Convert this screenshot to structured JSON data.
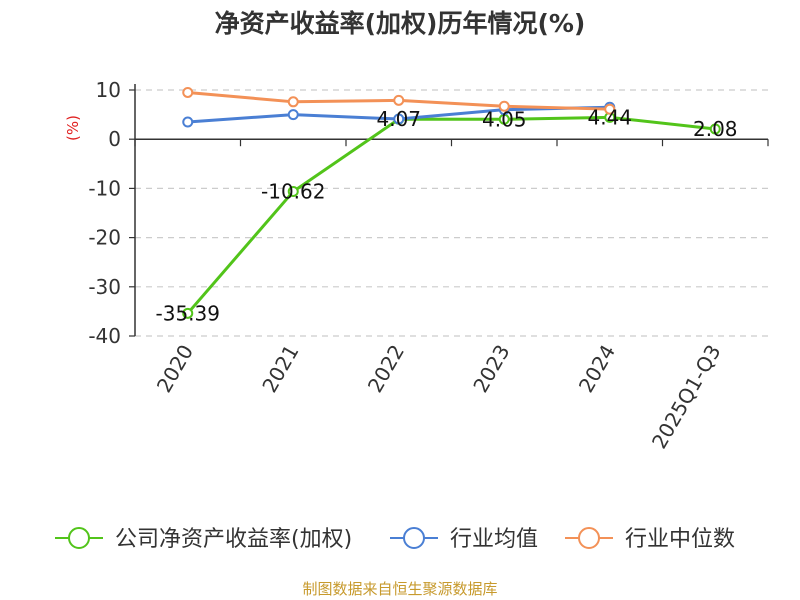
{
  "chart_data": {
    "type": "line",
    "title": "净资产收益率(加权)历年情况(%)",
    "ylabel": "(%)",
    "categories": [
      "2020",
      "2021",
      "2022",
      "2023",
      "2024",
      "2025Q1-Q3"
    ],
    "ylim": [
      -40,
      10
    ],
    "yticks": [
      10,
      0,
      -10,
      -20,
      -30,
      -40
    ],
    "grid": true,
    "legend_position": "bottom",
    "series": [
      {
        "name": "公司净资产收益率(加权)",
        "color": "#52c41a",
        "values": [
          -35.39,
          -10.62,
          4.07,
          4.05,
          4.44,
          2.08
        ],
        "labels": [
          "-35.39",
          "-10.62",
          "4.07",
          "4.05",
          "4.44",
          "2.08"
        ]
      },
      {
        "name": "行业均值",
        "color": "#4a7fd4",
        "values": [
          3.5,
          5.0,
          4.1,
          6.0,
          6.5,
          null
        ]
      },
      {
        "name": "行业中位数",
        "color": "#f39157",
        "values": [
          9.5,
          7.6,
          7.9,
          6.7,
          6.1,
          null
        ]
      }
    ]
  },
  "source": "制图数据来自恒生聚源数据库"
}
